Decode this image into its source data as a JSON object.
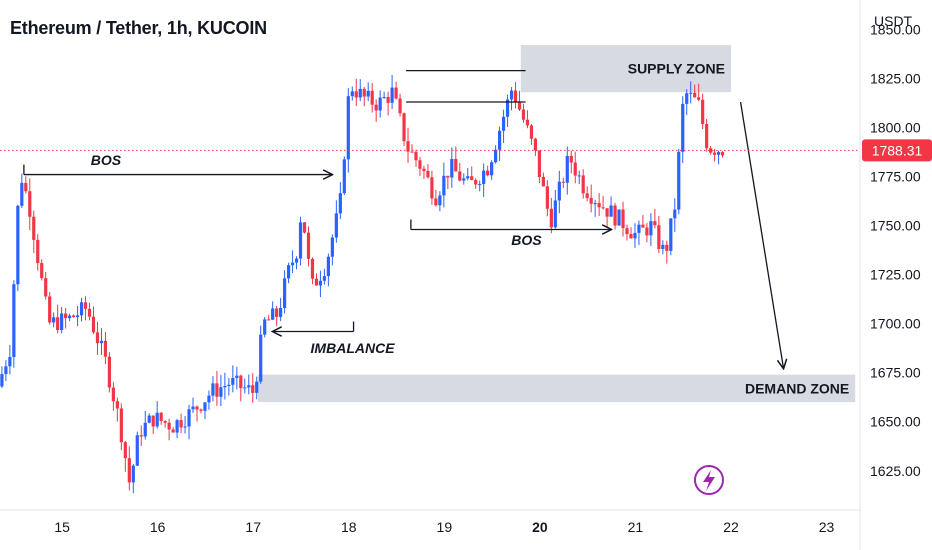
{
  "header": {
    "title": "Ethereum / Tether, 1h, KUCOIN"
  },
  "chart_data": {
    "type": "candlestick",
    "y_axis": {
      "unit_label": "USDT",
      "ticks": [
        "1850.00",
        "1825.00",
        "1800.00",
        "1775.00",
        "1750.00",
        "1725.00",
        "1700.00",
        "1675.00",
        "1650.00",
        "1625.00"
      ],
      "tick_values": [
        1850,
        1825,
        1800,
        1775,
        1750,
        1725,
        1700,
        1675,
        1650,
        1625
      ],
      "range": [
        1605,
        1865
      ]
    },
    "x_axis": {
      "ticks": [
        "15",
        "16",
        "17",
        "18",
        "19",
        "20",
        "21",
        "22",
        "23"
      ],
      "tick_values": [
        15,
        16,
        17,
        18,
        19,
        20,
        21,
        22,
        23
      ],
      "bold_tick": "20",
      "range": [
        14.35,
        23.35
      ]
    },
    "current_price": {
      "value": 1788.31,
      "label": "1788.31",
      "color": "#f23645"
    },
    "colors": {
      "up": "#2962ff",
      "down": "#f23645",
      "zone": "#d1d4dc",
      "icon": "#9c27b0"
    },
    "series_keypoints": [
      {
        "x": 14.37,
        "y": 1668
      },
      {
        "x": 14.5,
        "y": 1688
      },
      {
        "x": 14.6,
        "y": 1778
      },
      {
        "x": 14.7,
        "y": 1760
      },
      {
        "x": 14.8,
        "y": 1730
      },
      {
        "x": 14.9,
        "y": 1700
      },
      {
        "x": 15.1,
        "y": 1702
      },
      {
        "x": 15.3,
        "y": 1708
      },
      {
        "x": 15.5,
        "y": 1680
      },
      {
        "x": 15.65,
        "y": 1648
      },
      {
        "x": 15.75,
        "y": 1618
      },
      {
        "x": 15.85,
        "y": 1645
      },
      {
        "x": 16.0,
        "y": 1652
      },
      {
        "x": 16.2,
        "y": 1648
      },
      {
        "x": 16.4,
        "y": 1655
      },
      {
        "x": 16.6,
        "y": 1665
      },
      {
        "x": 16.8,
        "y": 1670
      },
      {
        "x": 17.05,
        "y": 1665
      },
      {
        "x": 17.15,
        "y": 1700
      },
      {
        "x": 17.3,
        "y": 1705
      },
      {
        "x": 17.4,
        "y": 1725
      },
      {
        "x": 17.5,
        "y": 1738
      },
      {
        "x": 17.55,
        "y": 1760
      },
      {
        "x": 17.65,
        "y": 1718
      },
      {
        "x": 17.8,
        "y": 1730
      },
      {
        "x": 17.95,
        "y": 1760
      },
      {
        "x": 18.05,
        "y": 1822
      },
      {
        "x": 18.2,
        "y": 1815
      },
      {
        "x": 18.35,
        "y": 1812
      },
      {
        "x": 18.5,
        "y": 1818
      },
      {
        "x": 18.65,
        "y": 1790
      },
      {
        "x": 18.8,
        "y": 1780
      },
      {
        "x": 18.95,
        "y": 1765
      },
      {
        "x": 19.1,
        "y": 1780
      },
      {
        "x": 19.3,
        "y": 1770
      },
      {
        "x": 19.5,
        "y": 1780
      },
      {
        "x": 19.75,
        "y": 1820
      },
      {
        "x": 19.9,
        "y": 1800
      },
      {
        "x": 20.0,
        "y": 1785
      },
      {
        "x": 20.15,
        "y": 1752
      },
      {
        "x": 20.35,
        "y": 1785
      },
      {
        "x": 20.5,
        "y": 1770
      },
      {
        "x": 20.7,
        "y": 1760
      },
      {
        "x": 20.9,
        "y": 1752
      },
      {
        "x": 21.05,
        "y": 1745
      },
      {
        "x": 21.2,
        "y": 1750
      },
      {
        "x": 21.35,
        "y": 1735
      },
      {
        "x": 21.45,
        "y": 1758
      },
      {
        "x": 21.55,
        "y": 1818
      },
      {
        "x": 21.7,
        "y": 1812
      },
      {
        "x": 21.8,
        "y": 1790
      },
      {
        "x": 21.92,
        "y": 1789
      }
    ],
    "zones": [
      {
        "label": "SUPPLY ZONE",
        "x0": 19.8,
        "x1": 22.0,
        "y0": 1818,
        "y1": 1842
      },
      {
        "label": "DEMAND ZONE",
        "x0": 17.05,
        "x1": 23.3,
        "y0": 1660,
        "y1": 1674
      }
    ],
    "annotations": [
      {
        "label": "BOS",
        "kind": "arrow",
        "x0": 14.6,
        "x1": 17.83,
        "y": 1776,
        "label_x": 15.3,
        "label_y": 1781
      },
      {
        "label": "BOS",
        "kind": "arrow",
        "x0": 18.65,
        "x1": 20.75,
        "y": 1748,
        "label_x": 19.7,
        "label_y": 1740
      },
      {
        "label": "IMBALANCE",
        "kind": "arrow",
        "x0": 18.05,
        "x1": 17.2,
        "y": 1696,
        "label_x": 17.6,
        "label_y": 1685
      }
    ]
  },
  "icons": {
    "flash": "lightning-icon"
  }
}
